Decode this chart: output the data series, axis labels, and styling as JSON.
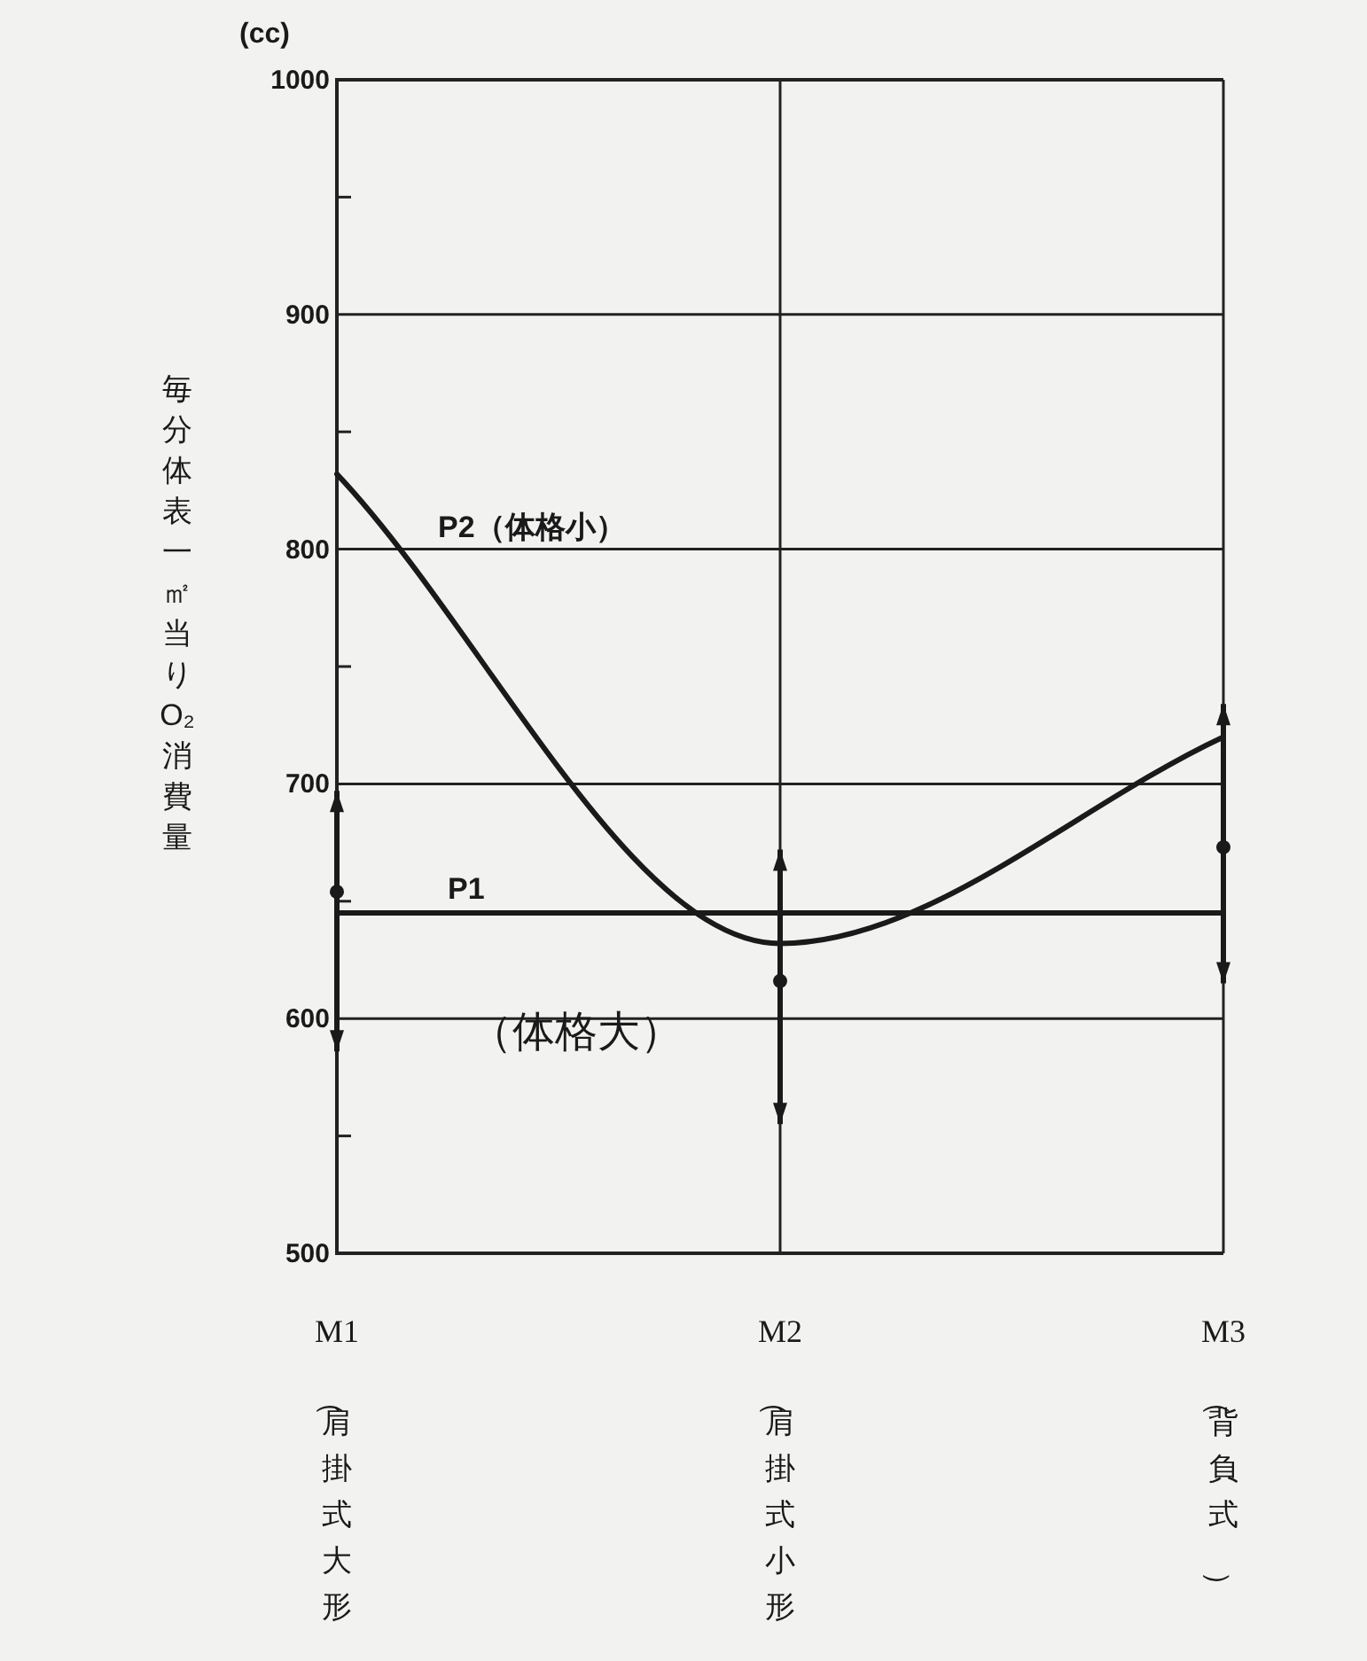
{
  "chart_data": {
    "type": "line",
    "ylabel": "毎分体表一㎡当りO₂消費量",
    "categories": [
      "M1（肩掛式大形）",
      "M2（肩掛式小形）",
      "M3（背負式）"
    ],
    "ylim": [
      500,
      1000
    ],
    "yticks": [
      500,
      {
        "value": 550,
        "label": null
      },
      600,
      {
        "value": 650,
        "label": null
      },
      700,
      {
        "value": 750,
        "label": null
      },
      800,
      {
        "value": 850,
        "label": null
      },
      900,
      {
        "value": 950,
        "label": null
      },
      1000
    ],
    "grid": true,
    "annotations": [
      "(cc)",
      "（体格大）"
    ],
    "series": [
      {
        "name": "P1",
        "color": "#1a1a1a",
        "values": [
          645,
          645,
          645
        ]
      },
      {
        "name": "P2（体格小）",
        "color": "#1a1a1a",
        "values": [
          832,
          632,
          720
        ]
      },
      {
        "type": "scatter",
        "color": "#1a1a1a",
        "marker": "circle",
        "values": [
          654,
          616,
          673
        ],
        "errors": [
          [
            586,
            697
          ],
          [
            555,
            672
          ],
          [
            615,
            734
          ]
        ]
      }
    ]
  }
}
